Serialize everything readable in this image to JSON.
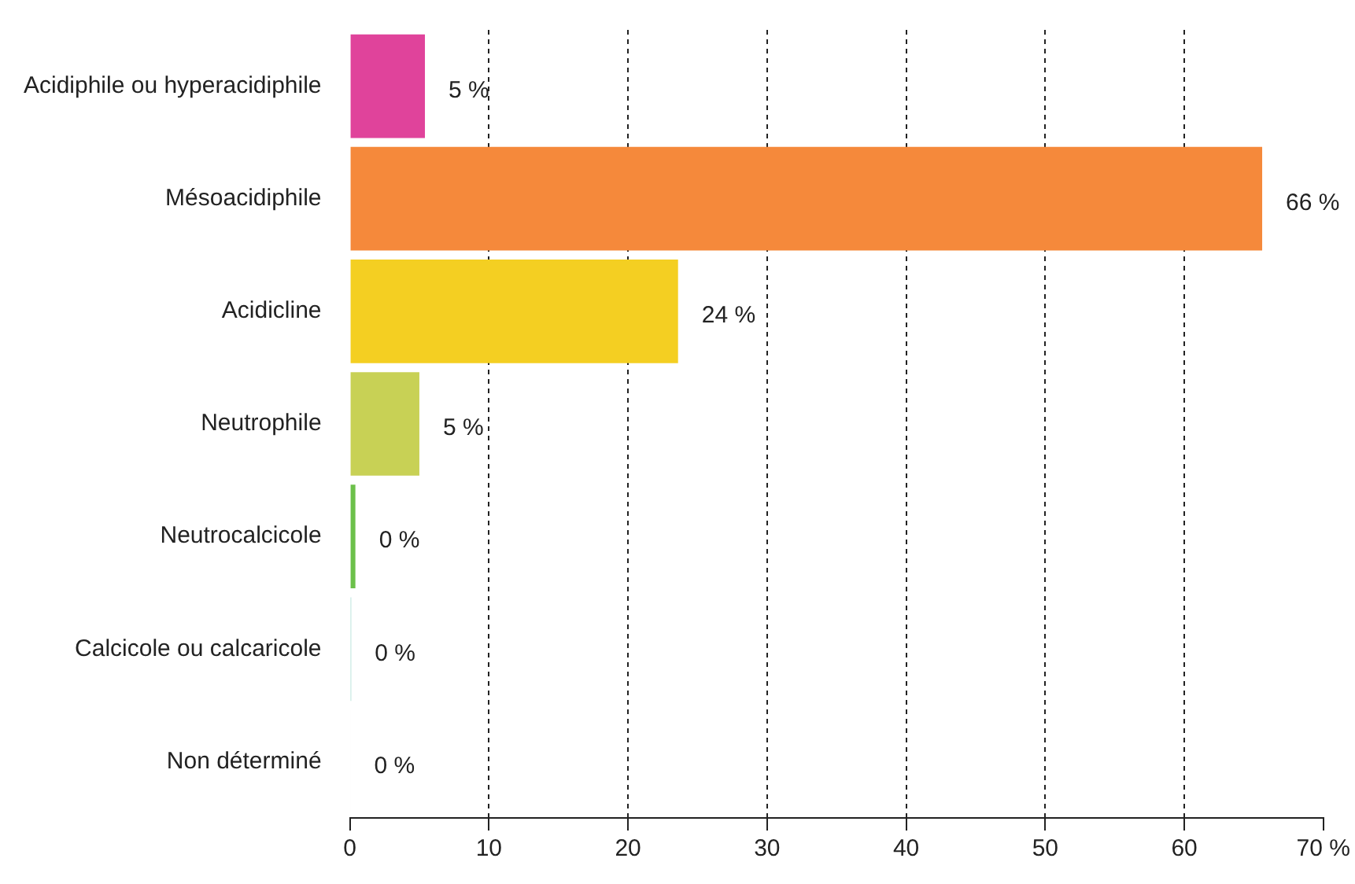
{
  "chart_data": {
    "type": "bar",
    "orientation": "horizontal",
    "categories": [
      "Acidiphile ou hyperacidiphile",
      "Mésoacidiphile",
      "Acidicline",
      "Neutrophile",
      "Neutrocalcicole",
      "Calcicole ou calcaricole",
      "Non déterminé"
    ],
    "values": [
      5.4,
      65.6,
      23.6,
      5.0,
      0.4,
      0.1,
      0.05
    ],
    "colors": [
      "#e0439b",
      "#f5893b",
      "#f4cf22",
      "#c8d155",
      "#6cc04a",
      "#a8dcd0",
      "#f0f0f0"
    ],
    "value_labels": [
      "5 %",
      "66 %",
      "24 %",
      "5 %",
      "0 %",
      "0 %",
      "0 %"
    ],
    "xlim": [
      0,
      70
    ],
    "xticks": [
      0,
      10,
      20,
      30,
      40,
      50,
      60,
      {
        "value": 70,
        "label": "70 %"
      }
    ],
    "grid": "x",
    "line_style": "dashed",
    "legend": false
  }
}
